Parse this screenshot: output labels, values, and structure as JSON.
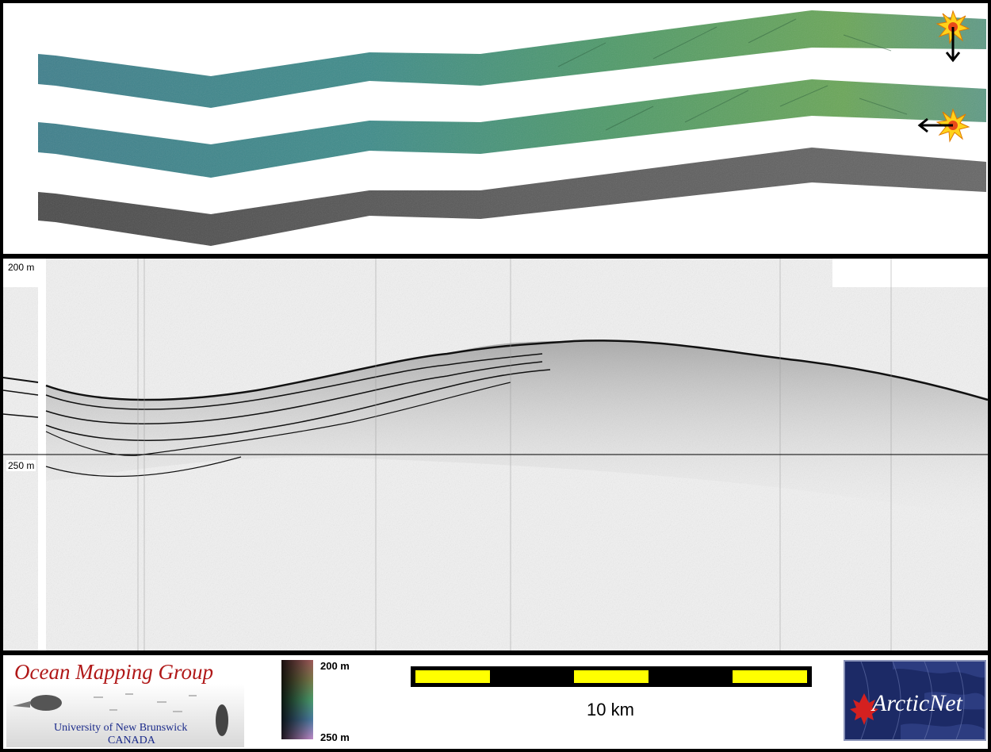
{
  "swaths": {
    "layers": [
      {
        "name": "shaded-bathymetry-sun-north"
      },
      {
        "name": "shaded-bathymetry-sun-west"
      },
      {
        "name": "backscatter"
      }
    ],
    "sun_markers": [
      {
        "direction": "down"
      },
      {
        "direction": "left"
      }
    ]
  },
  "profile": {
    "depth_top_label": "200 m",
    "depth_mid_label": "250 m"
  },
  "footer": {
    "omg_title": "Ocean Mapping Group",
    "omg_university": "University of New Brunswick",
    "omg_country": "CANADA",
    "colorbar_top": "200 m",
    "colorbar_bottom": "250 m",
    "scale_label": "10 km",
    "arcticnet_text": "ArcticNet"
  },
  "colors": {
    "scale_yellow": "#ffff00",
    "omg_red": "#b01818",
    "arcticnet_blue": "#1c2a66"
  }
}
